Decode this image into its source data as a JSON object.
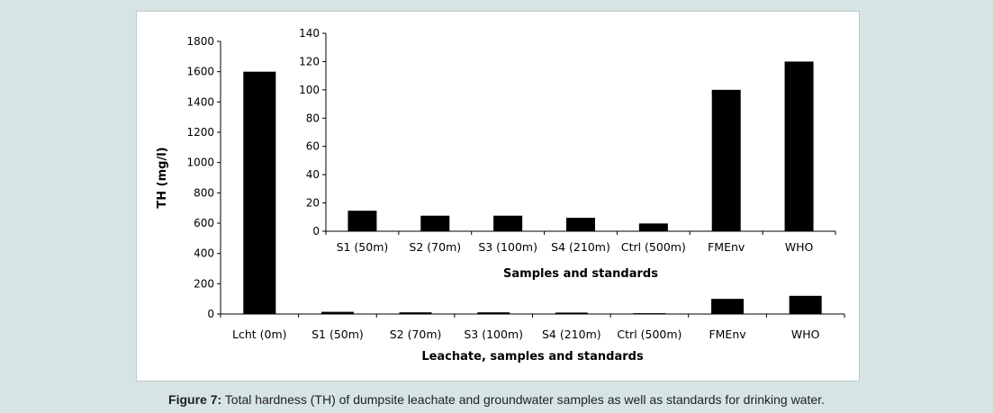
{
  "caption": {
    "label": "Figure 7:",
    "text": " Total hardness (TH) of dumpsite leachate and groundwater samples as well as standards for drinking water."
  },
  "colors": {
    "bar": "#000000",
    "page_bg": "#d6e4e4",
    "panel_bg": "#ffffff"
  },
  "chart_data": [
    {
      "type": "bar",
      "title": "",
      "categories": [
        "Lcht (0m)",
        "S1 (50m)",
        "S2 (70m)",
        "S3 (100m)",
        "S4 (210m)",
        "Ctrl (500m)",
        "FMEnv",
        "WHO"
      ],
      "values": [
        1600,
        14.5,
        11,
        11,
        9.5,
        5.5,
        100,
        120
      ],
      "xlabel": "Leachate, samples and standards",
      "ylabel": "TH (mg/l)",
      "ylim": [
        0,
        1800
      ],
      "yticks": [
        0,
        200,
        400,
        600,
        800,
        1000,
        1200,
        1400,
        1600,
        1800
      ],
      "grid": false,
      "legend": "none"
    },
    {
      "type": "bar",
      "title": "",
      "categories": [
        "S1 (50m)",
        "S2 (70m)",
        "S3 (100m)",
        "S4 (210m)",
        "Ctrl (500m)",
        "FMEnv",
        "WHO"
      ],
      "values": [
        14.5,
        11,
        11,
        9.5,
        5.5,
        100,
        120
      ],
      "xlabel": "Samples and standards",
      "ylabel": "",
      "ylim": [
        0,
        140
      ],
      "yticks": [
        0,
        20,
        40,
        60,
        80,
        100,
        120,
        140
      ],
      "grid": false,
      "legend": "none",
      "inset": true
    }
  ]
}
